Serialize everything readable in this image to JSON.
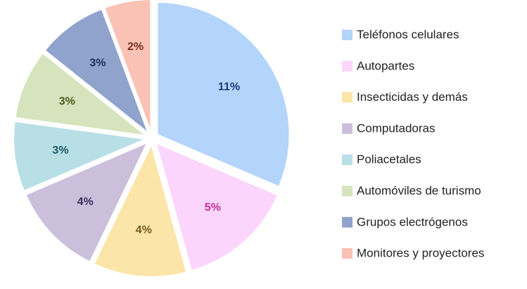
{
  "chart_data": {
    "type": "pie",
    "categories": [
      "Teléfonos celulares",
      "Autopartes",
      "Insecticidas y demás",
      "Computadoras",
      "Poliacetales",
      "Automóviles de turismo",
      "Grupos electrógenos",
      "Monitores y proyectores"
    ],
    "values": [
      11,
      5,
      4,
      4,
      3,
      3,
      3,
      2
    ],
    "value_labels": [
      "11%",
      "5%",
      "4%",
      "4%",
      "3%",
      "3%",
      "3%",
      "2%"
    ],
    "colors": [
      "#b3d4fb",
      "#fbd5fb",
      "#fbe5a8",
      "#ccbfdc",
      "#b8dfe6",
      "#d6e4bd",
      "#8fa3cc",
      "#f9c2b5"
    ],
    "label_colors": [
      "#1f3d7a",
      "#c0309b",
      "#7a5a1a",
      "#3d2f5a",
      "#1f5a66",
      "#4a5a1f",
      "#1f2f5a",
      "#7a2f1f"
    ],
    "legend": "right"
  }
}
